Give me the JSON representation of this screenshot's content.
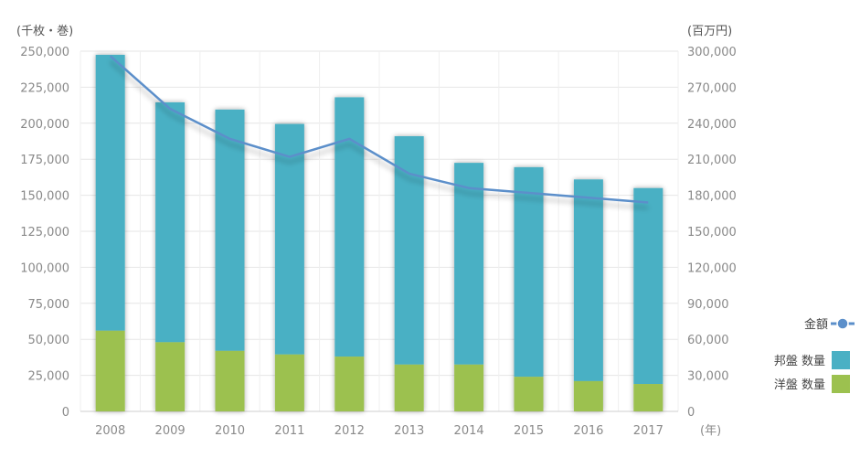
{
  "chart_data": {
    "type": "bar",
    "stacked": true,
    "categories": [
      "2008",
      "2009",
      "2010",
      "2011",
      "2012",
      "2013",
      "2014",
      "2015",
      "2016",
      "2017"
    ],
    "series": [
      {
        "name": "洋盤 数量",
        "axis": "left",
        "color": "#9cc14f",
        "values": [
          56000,
          48000,
          42000,
          39500,
          38000,
          32500,
          32500,
          24000,
          21000,
          19000
        ]
      },
      {
        "name": "邦盤 数量",
        "axis": "left",
        "color": "#4ab0c4",
        "values": [
          191500,
          166500,
          167500,
          160000,
          180000,
          158500,
          140000,
          145500,
          140000,
          136000
        ]
      },
      {
        "name": "金額",
        "type": "line",
        "axis": "right",
        "color": "#5b8fca",
        "values": [
          296000,
          252000,
          227000,
          212000,
          227000,
          198000,
          186000,
          182000,
          178000,
          174000
        ]
      }
    ],
    "left_axis": {
      "unit_label": "(千枚・巻)",
      "min": 0,
      "max": 250000,
      "step": 25000,
      "ticks": [
        "0",
        "25,000",
        "50,000",
        "75,000",
        "100,000",
        "125,000",
        "150,000",
        "175,000",
        "200,000",
        "225,000",
        "250,000"
      ]
    },
    "right_axis": {
      "unit_label": "(百万円)",
      "min": 0,
      "max": 300000,
      "step": 30000,
      "ticks": [
        "0",
        "30,000",
        "60,000",
        "90,000",
        "120,000",
        "150,000",
        "180,000",
        "210,000",
        "240,000",
        "270,000",
        "300,000"
      ]
    },
    "x_unit_label": "(年)",
    "legend": {
      "position": "right",
      "items": [
        "金額",
        "邦盤 数量",
        "洋盤 数量"
      ]
    },
    "grid": true
  }
}
